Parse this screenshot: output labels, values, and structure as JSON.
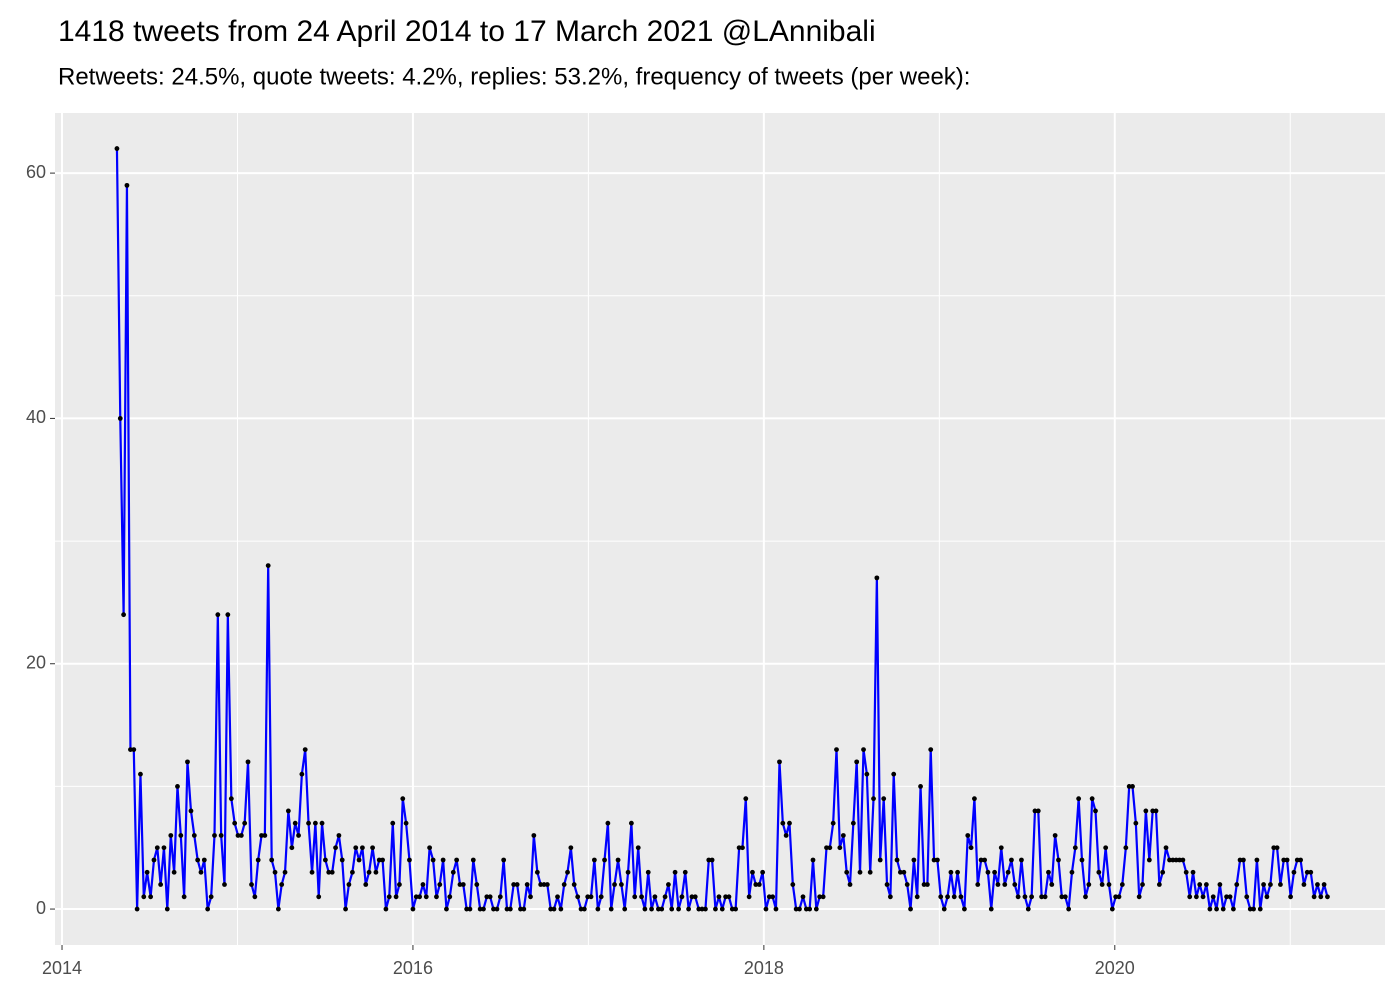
{
  "chart_data": {
    "type": "line",
    "title": "1418 tweets from 24 April 2014 to 17 March 2021 @LAnnibali",
    "subtitle": "Retweets: 24.5%, quote tweets: 4.2%, replies: 53.2%, frequency of tweets (per week):",
    "color": "#0000ff",
    "point_color": "#000000",
    "grid": true,
    "xlim": [
      2013.96,
      2021.54
    ],
    "xticks": [
      2014,
      2016,
      2018,
      2020
    ],
    "x_minor_ticks": [
      2015,
      2017,
      2019,
      2021
    ],
    "ylim": [
      -2.93,
      64.9
    ],
    "yticks": [
      0,
      20,
      40,
      60
    ],
    "y_minor_ticks": [
      10,
      30,
      50
    ],
    "x": [
      2014.313,
      2014.332,
      2014.351,
      2014.37,
      2014.39,
      2014.409,
      2014.428,
      2014.447,
      2014.466,
      2014.485,
      2014.505,
      2014.524,
      2014.543,
      2014.562,
      2014.581,
      2014.6,
      2014.62,
      2014.639,
      2014.658,
      2014.677,
      2014.696,
      2014.715,
      2014.735,
      2014.754,
      2014.773,
      2014.792,
      2014.811,
      2014.83,
      2014.85,
      2014.869,
      2014.888,
      2014.907,
      2014.926,
      2014.945,
      2014.965,
      2014.984,
      2015.003,
      2015.022,
      2015.041,
      2015.06,
      2015.08,
      2015.099,
      2015.118,
      2015.137,
      2015.156,
      2015.175,
      2015.195,
      2015.214,
      2015.233,
      2015.252,
      2015.271,
      2015.29,
      2015.31,
      2015.329,
      2015.348,
      2015.367,
      2015.386,
      2015.405,
      2015.425,
      2015.444,
      2015.463,
      2015.482,
      2015.501,
      2015.52,
      2015.54,
      2015.559,
      2015.578,
      2015.597,
      2015.616,
      2015.635,
      2015.655,
      2015.674,
      2015.693,
      2015.712,
      2015.731,
      2015.75,
      2015.77,
      2015.789,
      2015.808,
      2015.827,
      2015.846,
      2015.865,
      2015.885,
      2015.904,
      2015.923,
      2015.942,
      2015.961,
      2015.98,
      2016.0,
      2016.019,
      2016.038,
      2016.057,
      2016.076,
      2016.095,
      2016.115,
      2016.134,
      2016.153,
      2016.172,
      2016.191,
      2016.21,
      2016.23,
      2016.249,
      2016.268,
      2016.287,
      2016.306,
      2016.325,
      2016.344,
      2016.364,
      2016.383,
      2016.402,
      2016.421,
      2016.44,
      2016.459,
      2016.479,
      2016.498,
      2016.517,
      2016.536,
      2016.555,
      2016.574,
      2016.594,
      2016.613,
      2016.632,
      2016.651,
      2016.67,
      2016.689,
      2016.709,
      2016.728,
      2016.747,
      2016.766,
      2016.785,
      2016.804,
      2016.824,
      2016.843,
      2016.862,
      2016.881,
      2016.9,
      2016.919,
      2016.939,
      2016.958,
      2016.977,
      2016.996,
      2017.015,
      2017.034,
      2017.054,
      2017.073,
      2017.092,
      2017.111,
      2017.13,
      2017.149,
      2017.169,
      2017.188,
      2017.207,
      2017.226,
      2017.245,
      2017.264,
      2017.284,
      2017.303,
      2017.322,
      2017.341,
      2017.36,
      2017.379,
      2017.399,
      2017.418,
      2017.437,
      2017.456,
      2017.475,
      2017.494,
      2017.514,
      2017.533,
      2017.552,
      2017.571,
      2017.59,
      2017.609,
      2017.629,
      2017.648,
      2017.667,
      2017.686,
      2017.705,
      2017.724,
      2017.744,
      2017.763,
      2017.782,
      2017.801,
      2017.82,
      2017.839,
      2017.859,
      2017.878,
      2017.897,
      2017.916,
      2017.935,
      2017.954,
      2017.974,
      2017.993,
      2018.012,
      2018.031,
      2018.05,
      2018.069,
      2018.089,
      2018.108,
      2018.127,
      2018.146,
      2018.165,
      2018.184,
      2018.203,
      2018.223,
      2018.242,
      2018.261,
      2018.28,
      2018.299,
      2018.318,
      2018.338,
      2018.357,
      2018.376,
      2018.395,
      2018.414,
      2018.433,
      2018.453,
      2018.472,
      2018.491,
      2018.51,
      2018.529,
      2018.548,
      2018.568,
      2018.587,
      2018.606,
      2018.625,
      2018.644,
      2018.663,
      2018.683,
      2018.702,
      2018.721,
      2018.74,
      2018.759,
      2018.778,
      2018.798,
      2018.817,
      2018.836,
      2018.855,
      2018.874,
      2018.893,
      2018.913,
      2018.932,
      2018.951,
      2018.97,
      2018.989,
      2019.008,
      2019.028,
      2019.047,
      2019.066,
      2019.085,
      2019.104,
      2019.123,
      2019.143,
      2019.162,
      2019.181,
      2019.2,
      2019.219,
      2019.238,
      2019.258,
      2019.277,
      2019.296,
      2019.315,
      2019.334,
      2019.353,
      2019.373,
      2019.392,
      2019.411,
      2019.43,
      2019.449,
      2019.468,
      2019.488,
      2019.507,
      2019.526,
      2019.545,
      2019.564,
      2019.583,
      2019.603,
      2019.622,
      2019.641,
      2019.66,
      2019.679,
      2019.698,
      2019.718,
      2019.737,
      2019.756,
      2019.775,
      2019.794,
      2019.813,
      2019.833,
      2019.852,
      2019.871,
      2019.89,
      2019.909,
      2019.928,
      2019.948,
      2019.967,
      2019.986,
      2020.005,
      2020.024,
      2020.043,
      2020.063,
      2020.082,
      2020.101,
      2020.12,
      2020.139,
      2020.158,
      2020.177,
      2020.197,
      2020.216,
      2020.235,
      2020.254,
      2020.273,
      2020.292,
      2020.312,
      2020.331,
      2020.35,
      2020.369,
      2020.388,
      2020.407,
      2020.427,
      2020.446,
      2020.465,
      2020.484,
      2020.503,
      2020.522,
      2020.542,
      2020.561,
      2020.58,
      2020.599,
      2020.618,
      2020.637,
      2020.657,
      2020.676,
      2020.695,
      2020.714,
      2020.733,
      2020.752,
      2020.772,
      2020.791,
      2020.81,
      2020.829,
      2020.848,
      2020.867,
      2020.887,
      2020.906,
      2020.925,
      2020.944,
      2020.963,
      2020.982,
      2021.002,
      2021.021,
      2021.04,
      2021.059,
      2021.078,
      2021.097,
      2021.117,
      2021.136,
      2021.155,
      2021.174,
      2021.193,
      2021.212
    ],
    "values": [
      62,
      40,
      24,
      59,
      13,
      13,
      0,
      11,
      1,
      3,
      1,
      4,
      5,
      2,
      5,
      0,
      6,
      3,
      10,
      6,
      1,
      12,
      8,
      6,
      4,
      3,
      4,
      0,
      1,
      6,
      24,
      6,
      2,
      24,
      9,
      7,
      6,
      6,
      7,
      12,
      2,
      1,
      4,
      6,
      6,
      28,
      4,
      3,
      0,
      2,
      3,
      8,
      5,
      7,
      6,
      11,
      13,
      7,
      3,
      7,
      1,
      7,
      4,
      3,
      3,
      5,
      6,
      4,
      0,
      2,
      3,
      5,
      4,
      5,
      2,
      3,
      5,
      3,
      4,
      4,
      0,
      1,
      7,
      1,
      2,
      9,
      7,
      4,
      0,
      1,
      1,
      2,
      1,
      5,
      4,
      1,
      2,
      4,
      0,
      1,
      3,
      4,
      2,
      2,
      0,
      0,
      4,
      2,
      0,
      0,
      1,
      1,
      0,
      0,
      1,
      4,
      0,
      0,
      2,
      2,
      0,
      0,
      2,
      1,
      6,
      3,
      2,
      2,
      2,
      0,
      0,
      1,
      0,
      2,
      3,
      5,
      2,
      1,
      0,
      0,
      1,
      1,
      4,
      0,
      1,
      4,
      7,
      0,
      2,
      4,
      2,
      0,
      3,
      7,
      1,
      5,
      1,
      0,
      3,
      0,
      1,
      0,
      0,
      1,
      2,
      0,
      3,
      0,
      1,
      3,
      0,
      1,
      1,
      0,
      0,
      0,
      4,
      4,
      0,
      1,
      0,
      1,
      1,
      0,
      0,
      5,
      5,
      9,
      1,
      3,
      2,
      2,
      3,
      0,
      1,
      1,
      0,
      12,
      7,
      6,
      7,
      2,
      0,
      0,
      1,
      0,
      0,
      4,
      0,
      1,
      1,
      5,
      5,
      7,
      13,
      5,
      6,
      3,
      2,
      7,
      12,
      3,
      13,
      11,
      3,
      9,
      27,
      4,
      9,
      2,
      1,
      11,
      4,
      3,
      3,
      2,
      0,
      4,
      1,
      10,
      2,
      2,
      13,
      4,
      4,
      1,
      0,
      1,
      3,
      1,
      3,
      1,
      0,
      6,
      5,
      9,
      2,
      4,
      4,
      3,
      0,
      3,
      2,
      5,
      2,
      3,
      4,
      2,
      1,
      4,
      1,
      0,
      1,
      8,
      8,
      1,
      1,
      3,
      2,
      6,
      4,
      1,
      1,
      0,
      3,
      5,
      9,
      4,
      1,
      2,
      9,
      8,
      3,
      2,
      5,
      2,
      0,
      1,
      1,
      2,
      5,
      10,
      10,
      7,
      1,
      2,
      8,
      4,
      8,
      8,
      2,
      3,
      5,
      4,
      4,
      4,
      4,
      4,
      3,
      1,
      3,
      1,
      2,
      1,
      2,
      0,
      1,
      0,
      2,
      0,
      1,
      1,
      0,
      2,
      4,
      4,
      1,
      0,
      0,
      4,
      0,
      2,
      1,
      2,
      5,
      5,
      2,
      4,
      4,
      1,
      3,
      4,
      4,
      2,
      3,
      3,
      1,
      2,
      1,
      2,
      1
    ]
  }
}
